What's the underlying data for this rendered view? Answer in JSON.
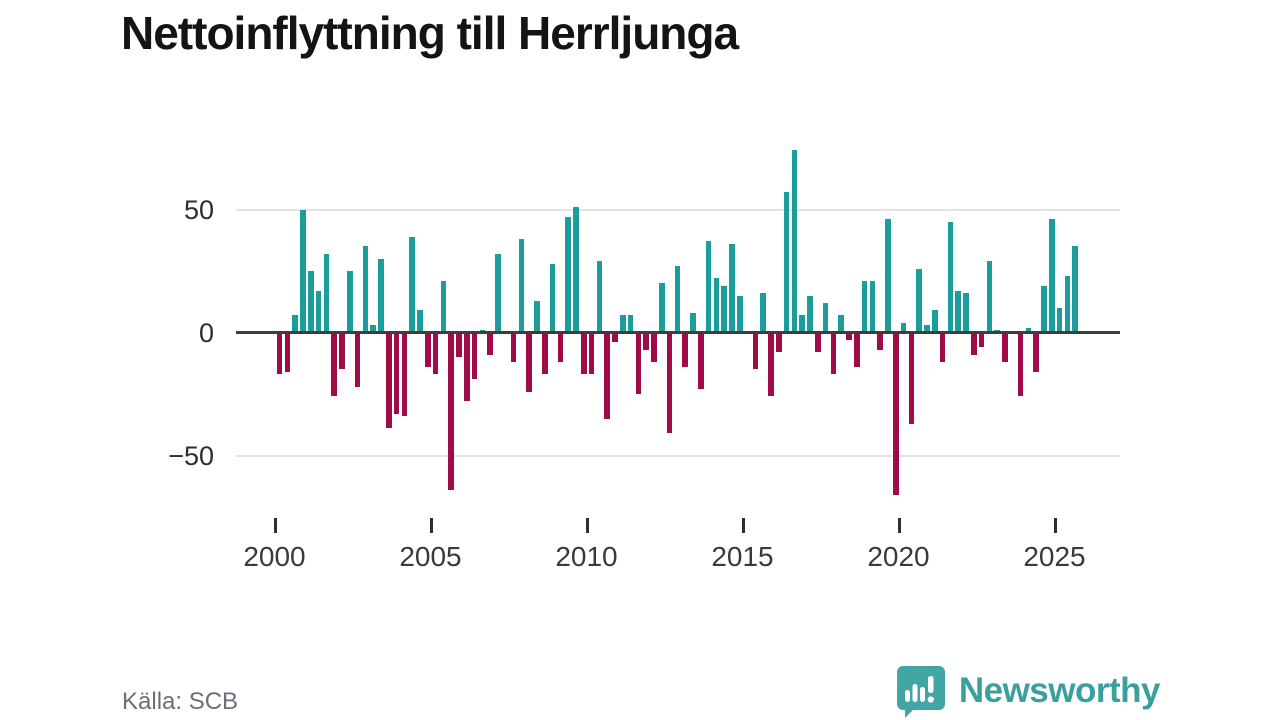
{
  "title": "Nettoinflyttning till Herrljunga",
  "source": "Källa: SCB",
  "branding": {
    "name": "Newsworthy",
    "icon": "speech-bubble-bar-chart-icon",
    "color": "#3aa09e"
  },
  "colors": {
    "positive_bar": "#1b9e9b",
    "negative_bar": "#a00c48",
    "zero_axis": "#3d3d3d",
    "gridline": "#e4e4e4",
    "axis_label": "#2e2e2e",
    "source_text": "#6e6e78"
  },
  "chart_data": {
    "type": "bar",
    "title": "Nettoinflyttning till Herrljunga",
    "frequency": "quarterly",
    "start": "2000-Q1",
    "end": "2025-Q3",
    "grid": "horizontal",
    "legend": "none",
    "ylim": [
      -75,
      80
    ],
    "y_ticks": [
      {
        "value": 50,
        "label": "50"
      },
      {
        "value": 0,
        "label": "0"
      },
      {
        "value": -50,
        "label": "−50"
      }
    ],
    "x_ticks": [
      {
        "year": 2000,
        "label": "2000"
      },
      {
        "year": 2005,
        "label": "2005"
      },
      {
        "year": 2010,
        "label": "2010"
      },
      {
        "year": 2015,
        "label": "2015"
      },
      {
        "year": 2020,
        "label": "2020"
      },
      {
        "year": 2025,
        "label": "2025"
      }
    ],
    "series": [
      {
        "name": "Nettoinflyttning",
        "values": [
          -17,
          -16,
          7,
          50,
          25,
          17,
          32,
          -26,
          -15,
          25,
          -22,
          35,
          3,
          30,
          -39,
          -33,
          -34,
          39,
          9,
          -14,
          -17,
          21,
          -64,
          -10,
          -28,
          -19,
          1,
          -9,
          32,
          0,
          -12,
          38,
          -24,
          13,
          -17,
          28,
          -12,
          47,
          51,
          -17,
          -17,
          29,
          -35,
          -4,
          7,
          7,
          -25,
          -7,
          -12,
          20,
          -41,
          27,
          -14,
          8,
          -23,
          37,
          22,
          19,
          36,
          15,
          0,
          -15,
          16,
          -26,
          -8,
          57,
          74,
          7,
          15,
          -8,
          12,
          -17,
          7,
          -3,
          -14,
          21,
          21,
          -7,
          46,
          -66,
          4,
          -37,
          26,
          3,
          9,
          -12,
          45,
          17,
          16,
          -9,
          -6,
          29,
          1,
          -12,
          0,
          -26,
          2,
          -16,
          19,
          46,
          10,
          23,
          35
        ]
      }
    ]
  }
}
